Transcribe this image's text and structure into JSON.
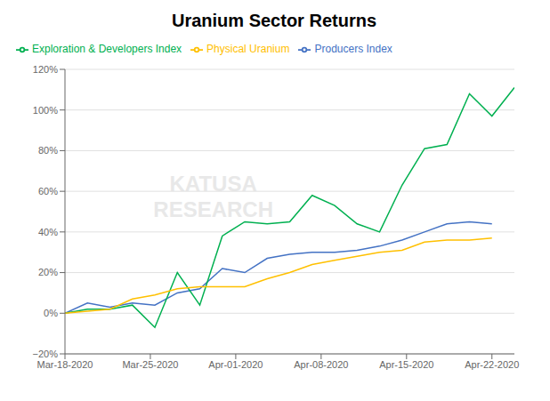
{
  "chart_data": {
    "type": "line",
    "title": "Uranium Sector Returns",
    "x": [
      0,
      1,
      2,
      3,
      4,
      5,
      6,
      7,
      8,
      9,
      10,
      11,
      12,
      13,
      14,
      15,
      16,
      17,
      18,
      19,
      20
    ],
    "series": [
      {
        "name": "Producers Index",
        "color": "#4472c4",
        "values": [
          0.0,
          0.05,
          0.03,
          0.05,
          0.04,
          0.1,
          0.12,
          0.22,
          0.2,
          0.27,
          0.29,
          0.3,
          0.3,
          0.31,
          0.33,
          0.36,
          0.4,
          0.44,
          0.45,
          0.44,
          null
        ]
      },
      {
        "name": "Exploration & Developers Index",
        "color": "#00b050",
        "values": [
          0.0,
          0.02,
          0.02,
          0.04,
          -0.07,
          0.2,
          0.04,
          0.38,
          0.45,
          0.44,
          0.45,
          0.58,
          0.53,
          0.44,
          0.4,
          0.63,
          0.81,
          0.83,
          1.08,
          0.97,
          1.11
        ]
      },
      {
        "name": "Physical Uranium",
        "color": "#ffc000",
        "values": [
          0.0,
          0.01,
          0.02,
          0.07,
          0.09,
          0.12,
          0.13,
          0.13,
          0.13,
          0.17,
          0.2,
          0.24,
          0.26,
          0.28,
          0.3,
          0.31,
          0.35,
          0.36,
          0.36,
          0.37,
          null
        ]
      }
    ],
    "xlim": [
      0,
      20
    ],
    "xticks": [
      {
        "value": 0,
        "label": "Mar-18-2020"
      },
      {
        "value": 3.8,
        "label": "Mar-25-2020"
      },
      {
        "value": 7.6,
        "label": "Apr-01-2020"
      },
      {
        "value": 11.4,
        "label": "Apr-08-2020"
      },
      {
        "value": 15.2,
        "label": "Apr-15-2020"
      },
      {
        "value": 19,
        "label": "Apr-22-2020"
      }
    ],
    "ylim": [
      -0.2,
      1.2
    ],
    "yticks": [
      {
        "value": -0.2,
        "label": "−20%"
      },
      {
        "value": 0.0,
        "label": "0%"
      },
      {
        "value": 0.2,
        "label": "20%"
      },
      {
        "value": 0.4,
        "label": "40%"
      },
      {
        "value": 0.6,
        "label": "60%"
      },
      {
        "value": 0.8,
        "label": "80%"
      },
      {
        "value": 1.0,
        "label": "100%"
      },
      {
        "value": 1.2,
        "label": "120%"
      }
    ],
    "grid": true,
    "legend": "upper left",
    "annotations": [
      {
        "text": "KATUSA\nRESEARCH"
      }
    ]
  }
}
